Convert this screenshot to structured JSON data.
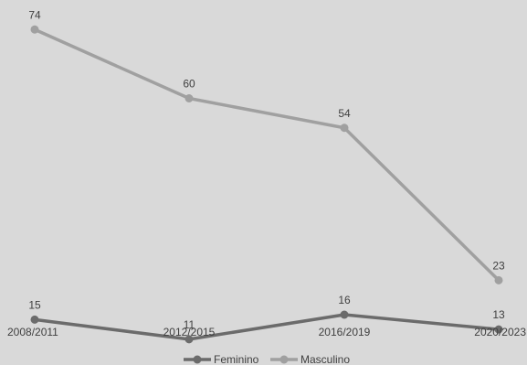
{
  "chart_data": {
    "type": "line",
    "title": "",
    "xlabel": "",
    "ylabel": "",
    "categories": [
      "2008/2011",
      "2012/2015",
      "2016/2019",
      "2020/2023"
    ],
    "ylim": [
      0,
      80
    ],
    "grid": false,
    "legend_position": "bottom-center",
    "series": [
      {
        "name": "Feminino",
        "values": [
          15,
          11,
          16,
          13
        ],
        "color": "#6b6b6b"
      },
      {
        "name": "Masculino",
        "values": [
          74,
          60,
          54,
          23
        ],
        "color": "#a0a0a0"
      }
    ]
  }
}
